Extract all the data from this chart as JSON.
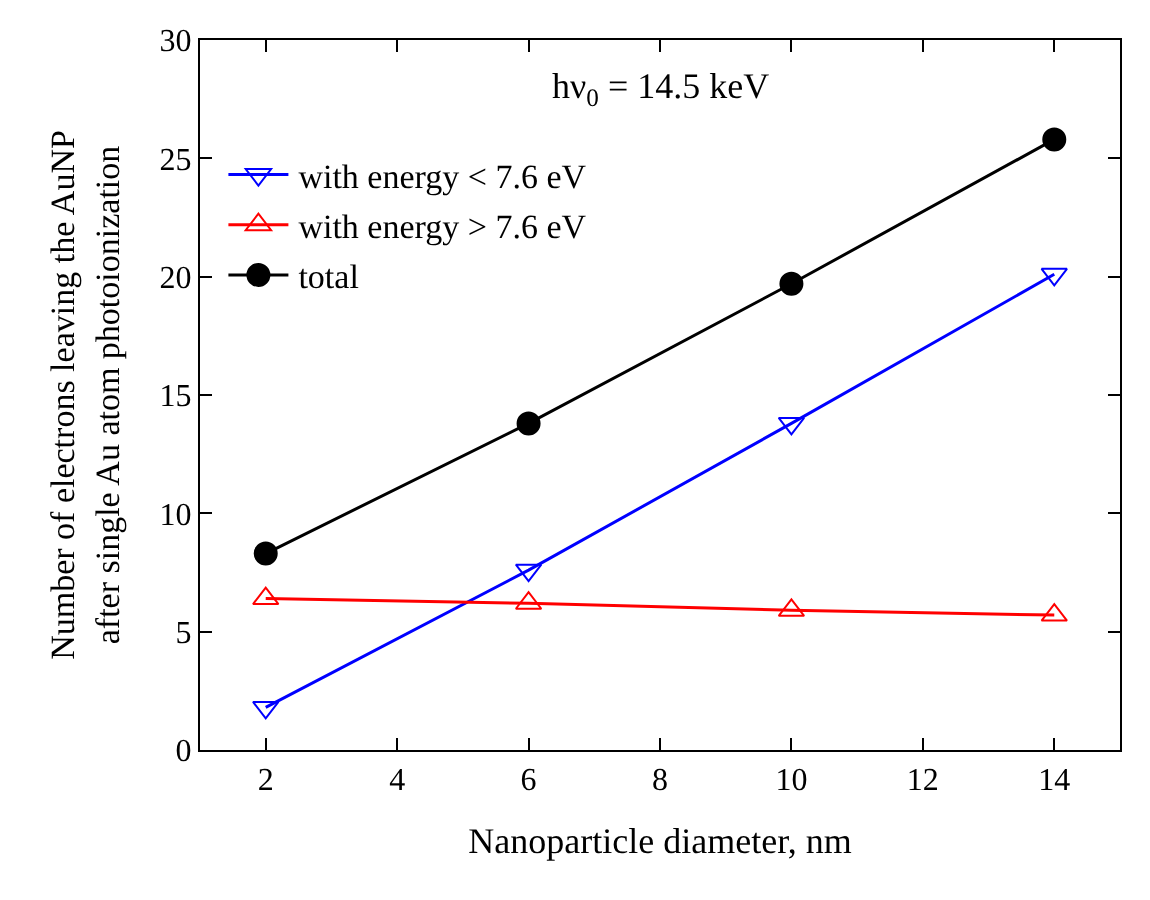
{
  "chart_data": {
    "type": "line",
    "xlabel": "Nanoparticle diameter, nm",
    "ylabel": "Number of electrons leaving the AuNP\nafter single Au atom photoionization",
    "annotations": [
      "hν$_{0}$ = 14.5 keV"
    ],
    "x": [
      2,
      6,
      10,
      14
    ],
    "series": [
      {
        "name": "with energy < 7.6 eV",
        "color": "#0000ff",
        "marker": "triangle-down-open",
        "values": [
          1.8,
          7.6,
          13.8,
          20.1
        ]
      },
      {
        "name": "with energy > 7.6 eV",
        "color": "#ff0000",
        "marker": "triangle-up-open",
        "values": [
          6.4,
          6.2,
          5.9,
          5.7
        ]
      },
      {
        "name": "total",
        "color": "#000000",
        "marker": "circle",
        "values": [
          8.3,
          13.8,
          19.7,
          25.8
        ]
      }
    ],
    "xlim": [
      1,
      15
    ],
    "xticks": [
      2,
      4,
      6,
      8,
      10,
      12,
      14
    ],
    "ylim": [
      0,
      30
    ],
    "yticks": [
      0,
      5,
      10,
      15,
      20,
      25,
      30
    ],
    "legend": "top left"
  }
}
